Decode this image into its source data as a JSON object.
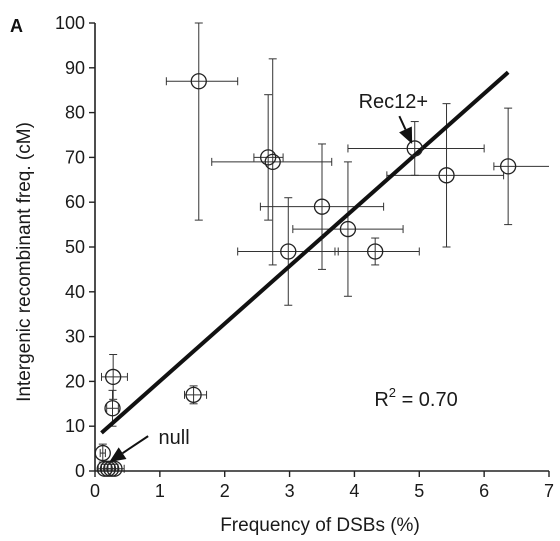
{
  "chart_data": {
    "type": "scatter",
    "panel_label": "A",
    "xlabel": "Frequency of DSBs (%)",
    "ylabel": "Intergenic recombinant freq. (cM)",
    "xlim": [
      0,
      7
    ],
    "ylim": [
      0,
      100
    ],
    "xticks": [
      0,
      1,
      2,
      3,
      4,
      5,
      6,
      7
    ],
    "yticks": [
      0,
      10,
      20,
      30,
      40,
      50,
      60,
      70,
      80,
      90,
      100
    ],
    "grid": false,
    "marker": "open-circle",
    "points": [
      {
        "x": 1.6,
        "y": 87,
        "xerr": [
          1.1,
          2.2
        ],
        "yerr": [
          56,
          100
        ]
      },
      {
        "x": 2.67,
        "y": 70,
        "xerr": [
          2.45,
          2.9
        ],
        "yerr": [
          56,
          84
        ]
      },
      {
        "x": 2.74,
        "y": 69,
        "xerr": [
          1.8,
          3.65
        ],
        "yerr": [
          46,
          92
        ]
      },
      {
        "x": 4.93,
        "y": 72,
        "xerr": [
          3.9,
          6.0
        ],
        "yerr": [
          66,
          78
        ]
      },
      {
        "x": 5.42,
        "y": 66,
        "xerr": [
          4.5,
          6.3
        ],
        "yerr": [
          50,
          82
        ]
      },
      {
        "x": 6.37,
        "y": 68,
        "xerr": [
          6.15,
          7.0
        ],
        "yerr": [
          55,
          81
        ]
      },
      {
        "x": 3.5,
        "y": 59,
        "xerr": [
          2.55,
          4.45
        ],
        "yerr": [
          45,
          73
        ]
      },
      {
        "x": 3.9,
        "y": 54,
        "xerr": [
          3.05,
          4.75
        ],
        "yerr": [
          39,
          69
        ]
      },
      {
        "x": 2.98,
        "y": 49,
        "xerr": [
          2.2,
          3.75
        ],
        "yerr": [
          37,
          61
        ]
      },
      {
        "x": 4.32,
        "y": 49,
        "xerr": [
          3.7,
          5.0
        ],
        "yerr": [
          46,
          52
        ]
      },
      {
        "x": 1.52,
        "y": 17,
        "xerr": [
          1.38,
          1.72
        ],
        "yerr": [
          15,
          19
        ]
      },
      {
        "x": 0.28,
        "y": 21,
        "xerr": [
          0.1,
          0.5
        ],
        "yerr": [
          16,
          26
        ]
      },
      {
        "x": 0.27,
        "y": 14,
        "xerr": [
          0.18,
          0.36
        ],
        "yerr": [
          10,
          18
        ]
      },
      {
        "x": 0.12,
        "y": 4,
        "xerr": [
          0.08,
          0.16
        ],
        "yerr": [
          2,
          6
        ]
      },
      {
        "x": 0.15,
        "y": 0.5,
        "xerr": [
          0.05,
          0.25
        ],
        "yerr": [
          0,
          1.5
        ]
      },
      {
        "x": 0.2,
        "y": 0.5,
        "xerr": [
          0.1,
          0.3
        ],
        "yerr": [
          0,
          1.5
        ]
      },
      {
        "x": 0.25,
        "y": 0.5,
        "xerr": [
          0.15,
          0.35
        ],
        "yerr": [
          0,
          1.5
        ]
      },
      {
        "x": 0.3,
        "y": 0.5,
        "xerr": [
          0.2,
          0.45
        ],
        "yerr": [
          0,
          1.5
        ]
      }
    ],
    "fit_line": {
      "x": [
        0.1,
        6.37
      ],
      "y": [
        8.5,
        89
      ]
    },
    "annotations": [
      {
        "text": "Rec12+",
        "x": 4.6,
        "y": 81,
        "arrow_to": [
          4.89,
          73
        ]
      },
      {
        "text": "null",
        "x": 1.22,
        "y": 6,
        "arrow_to": [
          0.22,
          2
        ]
      },
      {
        "text_base": "R",
        "text_sup": "2",
        "text_rest": " = 0.70",
        "x": 4.95,
        "y": 14.5
      }
    ]
  }
}
